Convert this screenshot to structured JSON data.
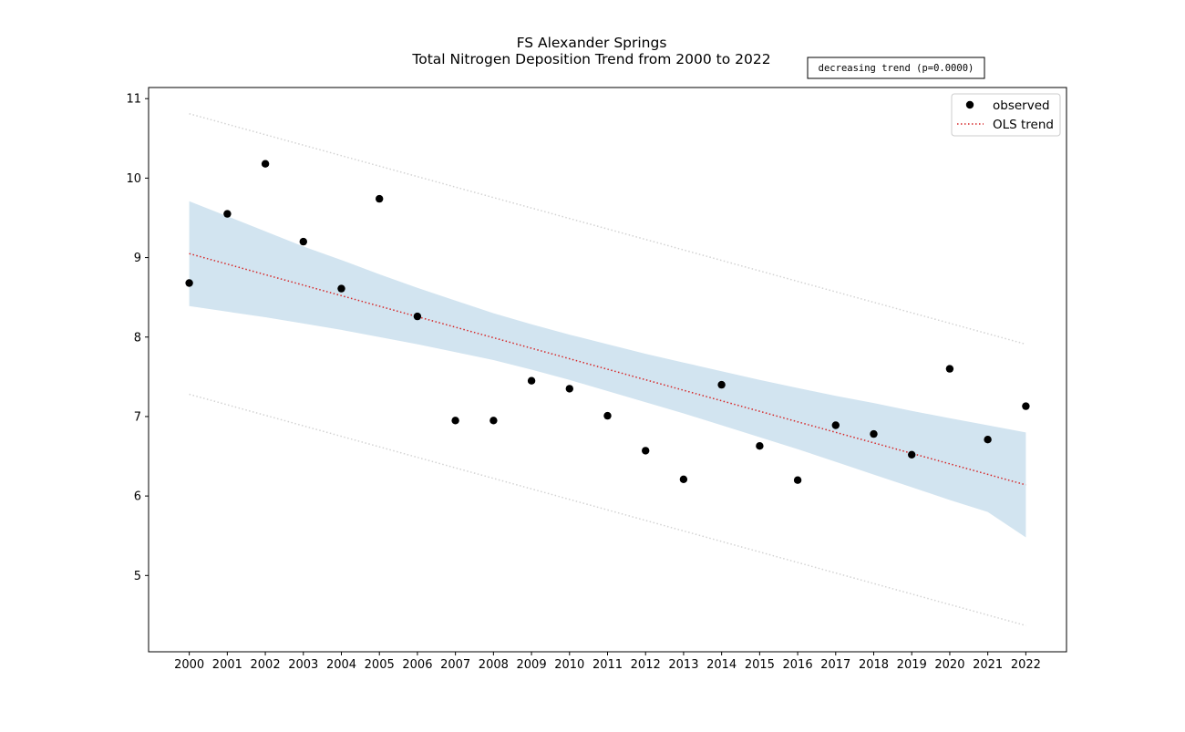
{
  "chart_data": {
    "type": "scatter",
    "title": "FS Alexander Springs",
    "subtitle": "Total Nitrogen Deposition Trend from 2000 to 2022",
    "annotation": "decreasing trend (p=0.0000)",
    "xlabel": "",
    "ylabel": "",
    "xlim": [
      1998.93,
      2023.07
    ],
    "ylim": [
      4.04,
      11.14
    ],
    "x": [
      2000,
      2001,
      2002,
      2003,
      2004,
      2005,
      2006,
      2007,
      2008,
      2009,
      2010,
      2011,
      2012,
      2013,
      2014,
      2015,
      2016,
      2017,
      2018,
      2019,
      2020,
      2021,
      2022
    ],
    "x_tick_labels": [
      "2000",
      "2001",
      "2002",
      "2003",
      "2004",
      "2005",
      "2006",
      "2007",
      "2008",
      "2009",
      "2010",
      "2011",
      "2012",
      "2013",
      "2014",
      "2015",
      "2016",
      "2017",
      "2018",
      "2019",
      "2020",
      "2021",
      "2022"
    ],
    "y_ticks": [
      5,
      6,
      7,
      8,
      9,
      10,
      11
    ],
    "y_tick_labels": [
      "5",
      "6",
      "7",
      "8",
      "9",
      "10",
      "11"
    ],
    "grid": false,
    "legend_position": "top-right",
    "series": [
      {
        "name": "observed",
        "kind": "scatter",
        "color": "#000000",
        "values": [
          8.68,
          9.55,
          10.18,
          9.2,
          8.61,
          9.74,
          8.26,
          6.95,
          6.95,
          7.45,
          7.35,
          7.01,
          6.57,
          6.21,
          7.4,
          6.63,
          6.2,
          6.89,
          6.78,
          6.52,
          7.6,
          6.71,
          7.13
        ]
      },
      {
        "name": "OLS trend",
        "kind": "line",
        "style": "dotted",
        "color": "#d62728",
        "endpoints": [
          9.05,
          6.14
        ]
      },
      {
        "kind": "band",
        "color": "#1f77b4",
        "opacity": 0.2,
        "upper": [
          9.71,
          9.52,
          9.33,
          9.14,
          8.97,
          8.79,
          8.62,
          8.46,
          8.3,
          8.16,
          8.03,
          7.91,
          7.79,
          7.68,
          7.57,
          7.46,
          7.36,
          7.26,
          7.17,
          7.07,
          6.98,
          6.89,
          6.8
        ],
        "lower": [
          8.39,
          8.32,
          8.25,
          8.17,
          8.09,
          8.0,
          7.91,
          7.81,
          7.71,
          7.59,
          7.46,
          7.32,
          7.18,
          7.04,
          6.89,
          6.74,
          6.59,
          6.43,
          6.27,
          6.11,
          5.95,
          5.8,
          5.48
        ]
      },
      {
        "kind": "prediction-interval",
        "style": "dotted",
        "color": "#d3d3d3",
        "upper_endpoints": [
          10.81,
          7.91
        ],
        "lower_endpoints": [
          7.28,
          4.37
        ]
      }
    ]
  }
}
